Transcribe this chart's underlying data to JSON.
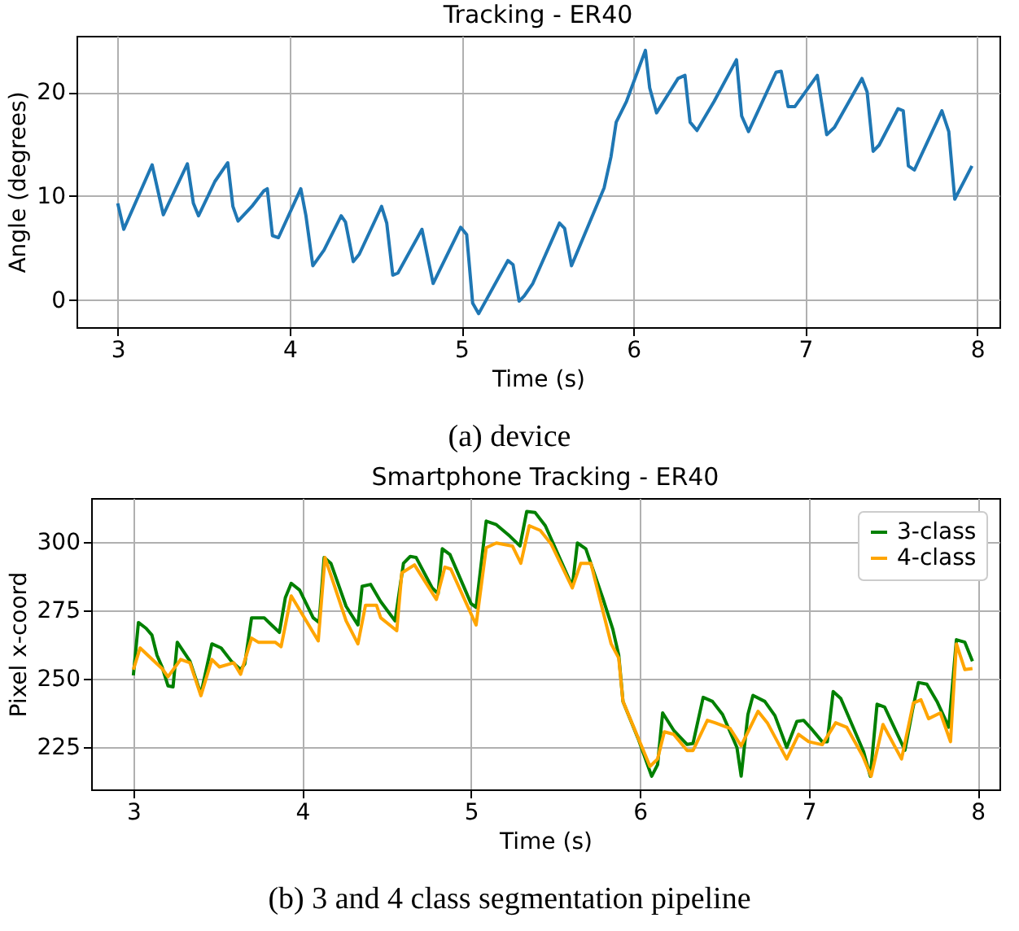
{
  "chart_data": [
    {
      "type": "line",
      "title": "Tracking - ER40",
      "xlabel": "Time (s)",
      "ylabel": "Angle (degrees)",
      "annotations": [
        "(a) device"
      ],
      "x": [
        3.0,
        3.035,
        3.2,
        3.265,
        3.405,
        3.44,
        3.47,
        3.565,
        3.64,
        3.67,
        3.7,
        3.78,
        3.85,
        3.87,
        3.9,
        3.935,
        4.065,
        4.095,
        4.135,
        4.2,
        4.3,
        4.325,
        4.37,
        4.405,
        4.535,
        4.565,
        4.6,
        4.63,
        4.77,
        4.835,
        4.995,
        5.03,
        5.065,
        5.1,
        5.27,
        5.3,
        5.335,
        5.365,
        5.415,
        5.57,
        5.6,
        5.64,
        5.83,
        5.87,
        5.9,
        5.96,
        6.07,
        6.095,
        6.135,
        6.26,
        6.3,
        6.33,
        6.37,
        6.47,
        6.6,
        6.63,
        6.67,
        6.83,
        6.86,
        6.9,
        6.94,
        7.07,
        7.125,
        7.17,
        7.33,
        7.36,
        7.395,
        7.43,
        7.54,
        7.57,
        7.6,
        7.635,
        7.795,
        7.835,
        7.87,
        7.97
      ],
      "series": [
        {
          "color": "#1f77b4",
          "values": [
            9.3,
            6.8,
            13.0,
            8.2,
            13.1,
            9.3,
            8.1,
            11.4,
            13.2,
            9.0,
            7.6,
            9.0,
            10.5,
            10.7,
            6.2,
            6.0,
            10.7,
            8.1,
            3.3,
            4.8,
            8.1,
            7.5,
            3.7,
            4.4,
            9.0,
            7.4,
            2.4,
            2.6,
            6.8,
            1.6,
            7.0,
            6.3,
            -0.3,
            -1.3,
            3.8,
            3.4,
            -0.1,
            0.4,
            1.6,
            7.4,
            6.9,
            3.3,
            10.8,
            13.8,
            17.1,
            19.1,
            24.0,
            20.4,
            18.0,
            21.3,
            21.6,
            17.1,
            16.3,
            19.1,
            23.1,
            17.7,
            16.2,
            21.9,
            22.0,
            18.6,
            18.6,
            21.6,
            15.9,
            16.6,
            21.3,
            20.0,
            14.3,
            14.9,
            18.4,
            18.2,
            12.9,
            12.5,
            18.2,
            16.2,
            9.7,
            12.9
          ]
        }
      ],
      "xlim": [
        2.76,
        8.13
      ],
      "ylim": [
        -2.6,
        25.4
      ],
      "xticks": [
        3,
        4,
        5,
        6,
        7,
        8
      ],
      "yticks": [
        0,
        10,
        20
      ],
      "grid": true,
      "line_style": "solid"
    },
    {
      "type": "line",
      "title": "Smartphone Tracking - ER40",
      "xlabel": "Time (s)",
      "ylabel": "Pixel x-coord",
      "annotations": [
        "(b) 3 and 4 class segmentation pipeline"
      ],
      "series": [
        {
          "name": "3-class",
          "color": "#008000",
          "x": [
            3.0,
            3.03,
            3.075,
            3.11,
            3.14,
            3.17,
            3.205,
            3.235,
            3.26,
            3.335,
            3.4,
            3.465,
            3.52,
            3.58,
            3.635,
            3.66,
            3.7,
            3.775,
            3.81,
            3.865,
            3.9,
            3.935,
            3.985,
            4.065,
            4.1,
            4.13,
            4.17,
            4.26,
            4.33,
            4.355,
            4.405,
            4.465,
            4.55,
            4.6,
            4.64,
            4.675,
            4.77,
            4.805,
            4.83,
            4.875,
            5.0,
            5.03,
            5.09,
            5.15,
            5.23,
            5.29,
            5.33,
            5.38,
            5.44,
            5.6,
            5.63,
            5.68,
            5.78,
            5.84,
            5.875,
            5.9,
            5.99,
            6.07,
            6.105,
            6.135,
            6.2,
            6.28,
            6.315,
            6.375,
            6.43,
            6.49,
            6.575,
            6.6,
            6.64,
            6.67,
            6.74,
            6.8,
            6.87,
            6.93,
            6.97,
            7.015,
            7.08,
            7.11,
            7.145,
            7.19,
            7.325,
            7.365,
            7.405,
            7.45,
            7.57,
            7.615,
            7.65,
            7.7,
            7.76,
            7.83,
            7.875,
            7.925,
            7.97
          ],
          "values": [
            251.3,
            270.6,
            268.5,
            266,
            258.6,
            254.4,
            247.5,
            247.1,
            263.4,
            256.5,
            244.5,
            262.8,
            261.3,
            256.5,
            253.4,
            255.5,
            272.3,
            272.3,
            270.2,
            267,
            279.6,
            284.9,
            282.4,
            272.3,
            270.6,
            294.3,
            292.2,
            276.5,
            269.7,
            283.8,
            284.5,
            278.2,
            271.2,
            292.2,
            294.7,
            294.3,
            283.2,
            281.1,
            297.5,
            295.4,
            277.5,
            276.1,
            307.6,
            306.3,
            302.1,
            298.5,
            311.1,
            310.7,
            305.9,
            283.8,
            299.6,
            297.5,
            279.6,
            268.1,
            258.6,
            241.8,
            228.2,
            214.5,
            218.7,
            237.6,
            231.3,
            226.1,
            226.5,
            243.3,
            241.8,
            237,
            225,
            214.5,
            237,
            244,
            241.8,
            236.6,
            225,
            234.5,
            234.9,
            231.9,
            227.1,
            227.1,
            245.4,
            242.9,
            223.5,
            214.5,
            240.8,
            239.7,
            224,
            238.7,
            248.7,
            248.1,
            241.8,
            232.4,
            264.3,
            263.4,
            256.5
          ]
        },
        {
          "name": "4-class",
          "color": "#ffa500",
          "x": [
            3.0,
            3.04,
            3.14,
            3.17,
            3.205,
            3.28,
            3.335,
            3.4,
            3.465,
            3.51,
            3.595,
            3.635,
            3.7,
            3.74,
            3.84,
            3.875,
            3.935,
            4.095,
            4.135,
            4.26,
            4.33,
            4.375,
            4.44,
            4.465,
            4.56,
            4.59,
            4.665,
            4.795,
            4.845,
            4.88,
            5.03,
            5.09,
            5.15,
            5.245,
            5.295,
            5.345,
            5.41,
            5.475,
            5.6,
            5.65,
            5.71,
            5.83,
            5.875,
            5.9,
            6.06,
            6.105,
            6.145,
            6.2,
            6.28,
            6.315,
            6.4,
            6.445,
            6.535,
            6.6,
            6.7,
            6.755,
            6.87,
            6.94,
            7.0,
            7.08,
            7.16,
            7.225,
            7.32,
            7.37,
            7.44,
            7.55,
            7.62,
            7.665,
            7.71,
            7.78,
            7.84,
            7.875,
            7.925,
            7.97
          ],
          "values": [
            253.4,
            261.3,
            255.5,
            253.8,
            250.8,
            257.1,
            255.9,
            243.9,
            257.1,
            254.4,
            255.9,
            251.7,
            264.9,
            263.4,
            263.4,
            261.8,
            280.3,
            263.9,
            294.3,
            271.2,
            262.8,
            276.9,
            276.9,
            272.3,
            267.6,
            288.7,
            291.6,
            279,
            290.8,
            290.1,
            269.7,
            297.9,
            299.6,
            298.5,
            292.2,
            305.9,
            304.2,
            299.2,
            283.2,
            292.2,
            292.2,
            262.8,
            257.6,
            241.8,
            218.1,
            220.8,
            230.7,
            229.8,
            223.9,
            223.9,
            234.9,
            234,
            231.9,
            225.6,
            238.2,
            234,
            220.8,
            229.8,
            227.1,
            226,
            234,
            232.4,
            221.9,
            214.5,
            233.4,
            220.8,
            241.2,
            242.4,
            235.5,
            237.6,
            227.1,
            262.8,
            253.4,
            253.8
          ]
        }
      ],
      "xlim": [
        2.75,
        8.13
      ],
      "ylim": [
        209.7,
        316
      ],
      "xticks": [
        3,
        4,
        5,
        6,
        7,
        8
      ],
      "yticks": [
        225,
        250,
        275,
        300
      ],
      "grid": true,
      "legend": "top right",
      "line_style": "solid"
    }
  ]
}
